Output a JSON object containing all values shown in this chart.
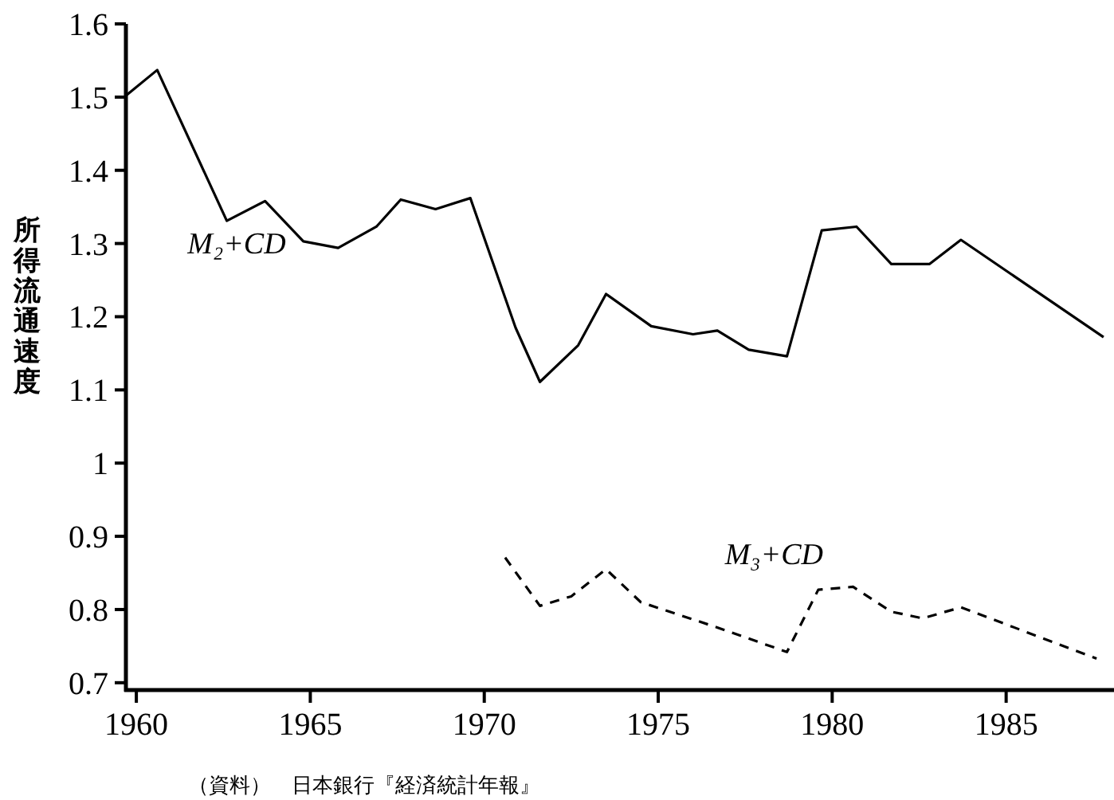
{
  "chart_data": {
    "type": "line",
    "ylabel": "所得流通速度",
    "xlim": [
      1959.7,
      1988.1
    ],
    "xticks": [
      1960,
      1965,
      1970,
      1975,
      1980,
      1985
    ],
    "ylim": [
      0.69,
      1.6
    ],
    "yticks": [
      0.7,
      0.8,
      0.9,
      1,
      1.1,
      1.2,
      1.3,
      1.4,
      1.5,
      1.6
    ],
    "grid": false,
    "marker": "none",
    "series": [
      {
        "name": "M₂+CD",
        "color": "#000000",
        "line_style": "solid",
        "x": [
          1959.7,
          1960.6,
          1962.6,
          1963.7,
          1964.8,
          1965.8,
          1966.9,
          1967.6,
          1968.6,
          1969.6,
          1970.9,
          1971.6,
          1972.7,
          1973.5,
          1974.8,
          1976.0,
          1976.7,
          1977.6,
          1978.7,
          1979.7,
          1980.7,
          1981.7,
          1982.8,
          1983.7,
          1987.8
        ],
        "values": [
          1.502,
          1.537,
          1.331,
          1.358,
          1.303,
          1.294,
          1.323,
          1.36,
          1.347,
          1.362,
          1.185,
          1.111,
          1.161,
          1.231,
          1.187,
          1.176,
          1.181,
          1.155,
          1.146,
          1.318,
          1.323,
          1.272,
          1.272,
          1.305,
          1.172
        ]
      },
      {
        "name": "M₃+CD",
        "color": "#000000",
        "line_style": "dashed",
        "x": [
          1970.6,
          1971.6,
          1972.5,
          1973.5,
          1974.5,
          1976.6,
          1978.7,
          1979.6,
          1980.6,
          1981.7,
          1982.6,
          1983.7,
          1987.6
        ],
        "values": [
          0.871,
          0.805,
          0.818,
          0.855,
          0.81,
          0.777,
          0.742,
          0.827,
          0.831,
          0.797,
          0.788,
          0.803,
          0.733
        ]
      }
    ],
    "annotations": [
      "（資料）　日本銀行『経済統計年報』"
    ]
  }
}
